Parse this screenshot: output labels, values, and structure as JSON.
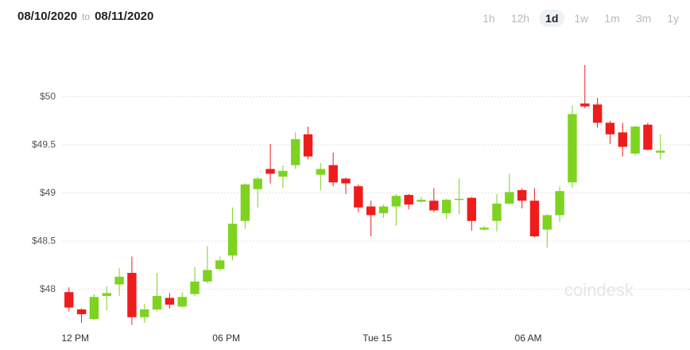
{
  "header": {
    "from": "08/10/2020",
    "to_word": "to",
    "to": "08/11/2020",
    "ranges": [
      "1h",
      "12h",
      "1d",
      "1w",
      "1m",
      "3m",
      "1y"
    ],
    "selected": 2
  },
  "chart_data": {
    "type": "candlestick",
    "watermark": "coindesk",
    "x": [
      -0.25,
      0.25,
      0.75,
      1.25,
      1.75,
      2.25,
      2.75,
      3.25,
      3.75,
      4.25,
      4.75,
      5.25,
      5.75,
      6.25,
      6.75,
      7.25,
      7.75,
      8.25,
      8.75,
      9.25,
      9.75,
      10.25,
      10.75,
      11.25,
      11.75,
      12.25,
      12.75,
      13.25,
      13.75,
      14.25,
      14.75,
      15.25,
      15.75,
      16.25,
      16.75,
      17.25,
      17.75,
      18.25,
      18.75,
      19.25,
      19.75,
      20.25,
      20.75,
      21.25,
      21.75,
      22.25,
      22.75,
      23.25
    ],
    "open": [
      47.97,
      47.79,
      47.69,
      47.93,
      48.05,
      48.17,
      47.71,
      47.79,
      47.91,
      47.82,
      47.95,
      48.08,
      48.21,
      48.35,
      48.71,
      49.04,
      49.25,
      49.17,
      49.29,
      49.61,
      49.19,
      49.29,
      49.15,
      49.07,
      48.86,
      48.79,
      48.86,
      48.98,
      48.91,
      48.92,
      48.79,
      48.93,
      48.95,
      48.62,
      48.71,
      48.89,
      49.03,
      48.92,
      48.62,
      48.77,
      49.11,
      49.93,
      49.92,
      49.73,
      49.63,
      49.41,
      49.71,
      49.42
    ],
    "high": [
      48.02,
      47.8,
      47.95,
      48.03,
      48.22,
      48.34,
      47.85,
      48.17,
      47.96,
      47.97,
      48.23,
      48.45,
      48.34,
      48.85,
      49.1,
      49.17,
      49.51,
      49.29,
      49.63,
      49.69,
      49.31,
      49.42,
      49.16,
      49.09,
      48.92,
      48.88,
      48.99,
      48.99,
      48.96,
      49.05,
      48.94,
      49.15,
      48.96,
      48.66,
      48.99,
      49.2,
      49.05,
      49.05,
      48.78,
      49.07,
      49.91,
      50.33,
      49.99,
      49.75,
      49.73,
      49.7,
      49.73,
      49.61
    ],
    "low": [
      47.77,
      47.65,
      47.68,
      47.78,
      47.93,
      47.63,
      47.65,
      47.77,
      47.8,
      47.81,
      47.93,
      48.06,
      48.19,
      48.3,
      48.63,
      48.85,
      49.1,
      49.05,
      49.25,
      49.35,
      49.03,
      49.07,
      48.99,
      48.8,
      48.55,
      48.74,
      48.66,
      48.83,
      48.9,
      48.8,
      48.73,
      48.78,
      48.61,
      48.61,
      48.6,
      48.88,
      48.84,
      48.54,
      48.43,
      48.7,
      49.05,
      49.88,
      49.68,
      49.51,
      49.38,
      49.39,
      49.44,
      49.35
    ],
    "close": [
      47.81,
      47.74,
      47.92,
      47.96,
      48.13,
      47.71,
      47.79,
      47.93,
      47.84,
      47.92,
      48.08,
      48.2,
      48.3,
      48.68,
      49.09,
      49.15,
      49.2,
      49.23,
      49.56,
      49.38,
      49.25,
      49.11,
      49.1,
      48.85,
      48.77,
      48.86,
      48.97,
      48.88,
      48.93,
      48.82,
      48.93,
      48.94,
      48.71,
      48.64,
      48.89,
      49.01,
      48.92,
      48.55,
      48.77,
      49.02,
      49.82,
      49.9,
      49.73,
      49.61,
      49.48,
      49.69,
      49.45,
      49.44
    ],
    "up_color": "#7ed321",
    "down_color": "#ef1c1c",
    "xlim": [
      -1,
      23.7
    ],
    "xticks": [
      {
        "value": 0,
        "label": "12 PM"
      },
      {
        "value": 6,
        "label": "06 PM"
      },
      {
        "value": 12,
        "label": "Tue 15"
      },
      {
        "value": 18,
        "label": "06 AM"
      }
    ],
    "ylim": [
      47.6,
      50.7
    ],
    "yticks": [
      {
        "value": 48,
        "label": "$48"
      },
      {
        "value": 48.5,
        "label": "$48.5"
      },
      {
        "value": 49,
        "label": "$49"
      },
      {
        "value": 49.5,
        "label": "$49.5"
      },
      {
        "value": 50,
        "label": "$50"
      }
    ],
    "grid": true
  }
}
